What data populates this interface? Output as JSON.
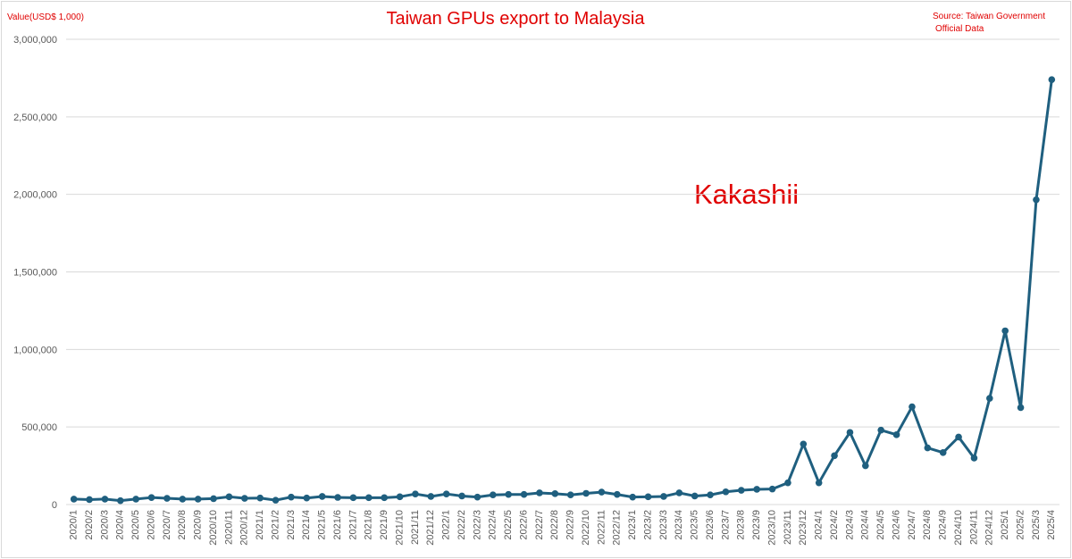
{
  "chart_data": {
    "type": "line",
    "title": "Taiwan GPUs export to Malaysia",
    "ylabel": "Value(USD$ 1,000)",
    "source": [
      "Source: Taiwan Government",
      "Official Data"
    ],
    "watermark": "Kakashii",
    "ylim": [
      0,
      3000000
    ],
    "yticks": [
      0,
      500000,
      1000000,
      1500000,
      2000000,
      2500000,
      3000000
    ],
    "ytick_labels": [
      "0",
      "500,000",
      "1,000,000",
      "1,500,000",
      "2,000,000",
      "2,500,000",
      "3,000,000"
    ],
    "grid": true,
    "color": "#1f5f7f",
    "categories": [
      "2020/1",
      "2020/2",
      "2020/3",
      "2020/4",
      "2020/5",
      "2020/6",
      "2020/7",
      "2020/8",
      "2020/9",
      "2020/10",
      "2020/11",
      "2020/12",
      "2021/1",
      "2021/2",
      "2021/3",
      "2021/4",
      "2021/5",
      "2021/6",
      "2021/7",
      "2021/8",
      "2021/9",
      "2021/10",
      "2021/11",
      "2021/12",
      "2022/1",
      "2022/2",
      "2022/3",
      "2022/4",
      "2022/5",
      "2022/6",
      "2022/7",
      "2022/8",
      "2022/9",
      "2022/10",
      "2022/11",
      "2022/12",
      "2023/1",
      "2023/2",
      "2023/3",
      "2023/4",
      "2023/5",
      "2023/6",
      "2023/7",
      "2023/8",
      "2023/9",
      "2023/10",
      "2023/11",
      "2023/12",
      "2024/1",
      "2024/2",
      "2024/3",
      "2024/4",
      "2024/5",
      "2024/6",
      "2024/7",
      "2024/8",
      "2024/9",
      "2024/10",
      "2024/11",
      "2024/12",
      "2025/1",
      "2025/2",
      "2025/3",
      "2025/4"
    ],
    "values": [
      35000,
      32000,
      35000,
      25000,
      35000,
      45000,
      40000,
      35000,
      35000,
      38000,
      50000,
      40000,
      42000,
      28000,
      48000,
      42000,
      52000,
      46000,
      44000,
      44000,
      44000,
      50000,
      68000,
      52000,
      68000,
      55000,
      48000,
      62000,
      65000,
      65000,
      75000,
      70000,
      62000,
      72000,
      80000,
      65000,
      48000,
      50000,
      52000,
      75000,
      55000,
      62000,
      82000,
      92000,
      98000,
      100000,
      140000,
      390000,
      140000,
      315000,
      465000,
      250000,
      480000,
      450000,
      630000,
      365000,
      335000,
      435000,
      300000,
      685000,
      1120000,
      625000,
      1965000,
      2740000
    ]
  }
}
